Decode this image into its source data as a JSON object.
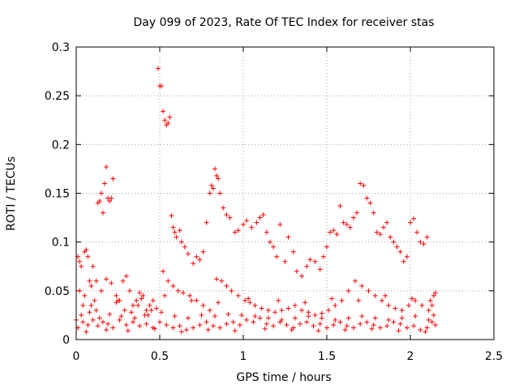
{
  "chart_data": {
    "type": "scatter",
    "title": "Day 099 of 2023, Rate Of TEC Index for receiver stas",
    "xlabel": "GPS time / hours",
    "ylabel": "ROTI / TECUs",
    "xlim": [
      0,
      2.5
    ],
    "ylim": [
      0,
      0.3
    ],
    "xticks": [
      0,
      0.5,
      1,
      1.5,
      2,
      2.5
    ],
    "xtick_labels": [
      "0",
      "0.5",
      "1",
      "1.5",
      "2",
      "2.5"
    ],
    "yticks": [
      0,
      0.05,
      0.1,
      0.15,
      0.2,
      0.25,
      0.3
    ],
    "ytick_labels": [
      "0",
      "0.05",
      "0.1",
      "0.15",
      "0.2",
      "0.25",
      "0.3"
    ],
    "grid": true,
    "marker": "+",
    "color": "#ff0000",
    "series": [
      {
        "name": "ROTI",
        "points": [
          [
            0.0,
            0.02
          ],
          [
            0.01,
            0.085
          ],
          [
            0.02,
            0.08
          ],
          [
            0.03,
            0.075
          ],
          [
            0.04,
            0.035
          ],
          [
            0.05,
            0.09
          ],
          [
            0.06,
            0.092
          ],
          [
            0.07,
            0.085
          ],
          [
            0.08,
            0.06
          ],
          [
            0.09,
            0.055
          ],
          [
            0.1,
            0.075
          ],
          [
            0.12,
            0.06
          ],
          [
            0.13,
            0.14
          ],
          [
            0.14,
            0.142
          ],
          [
            0.15,
            0.15
          ],
          [
            0.16,
            0.13
          ],
          [
            0.17,
            0.16
          ],
          [
            0.18,
            0.177
          ],
          [
            0.19,
            0.145
          ],
          [
            0.2,
            0.142
          ],
          [
            0.21,
            0.145
          ],
          [
            0.22,
            0.165
          ],
          [
            0.24,
            0.045
          ],
          [
            0.26,
            0.04
          ],
          [
            0.28,
            0.06
          ],
          [
            0.3,
            0.065
          ],
          [
            0.32,
            0.05
          ],
          [
            0.34,
            0.035
          ],
          [
            0.36,
            0.04
          ],
          [
            0.38,
            0.048
          ],
          [
            0.4,
            0.045
          ],
          [
            0.42,
            0.03
          ],
          [
            0.44,
            0.035
          ],
          [
            0.46,
            0.04
          ],
          [
            0.48,
            0.032
          ],
          [
            0.49,
            0.278
          ],
          [
            0.5,
            0.26
          ],
          [
            0.51,
            0.26
          ],
          [
            0.52,
            0.234
          ],
          [
            0.53,
            0.225
          ],
          [
            0.54,
            0.22
          ],
          [
            0.55,
            0.222
          ],
          [
            0.56,
            0.228
          ],
          [
            0.57,
            0.127
          ],
          [
            0.58,
            0.115
          ],
          [
            0.59,
            0.11
          ],
          [
            0.6,
            0.105
          ],
          [
            0.62,
            0.112
          ],
          [
            0.63,
            0.1
          ],
          [
            0.65,
            0.095
          ],
          [
            0.67,
            0.088
          ],
          [
            0.7,
            0.078
          ],
          [
            0.72,
            0.085
          ],
          [
            0.74,
            0.082
          ],
          [
            0.76,
            0.09
          ],
          [
            0.78,
            0.12
          ],
          [
            0.8,
            0.15
          ],
          [
            0.81,
            0.158
          ],
          [
            0.82,
            0.155
          ],
          [
            0.83,
            0.175
          ],
          [
            0.84,
            0.168
          ],
          [
            0.85,
            0.165
          ],
          [
            0.86,
            0.15
          ],
          [
            0.88,
            0.135
          ],
          [
            0.9,
            0.128
          ],
          [
            0.92,
            0.125
          ],
          [
            0.95,
            0.11
          ],
          [
            0.97,
            0.112
          ],
          [
            1.0,
            0.118
          ],
          [
            1.02,
            0.122
          ],
          [
            1.05,
            0.115
          ],
          [
            1.08,
            0.12
          ],
          [
            1.1,
            0.125
          ],
          [
            1.12,
            0.128
          ],
          [
            1.14,
            0.11
          ],
          [
            1.16,
            0.1
          ],
          [
            1.18,
            0.095
          ],
          [
            1.2,
            0.085
          ],
          [
            1.22,
            0.118
          ],
          [
            1.25,
            0.08
          ],
          [
            1.27,
            0.105
          ],
          [
            1.3,
            0.09
          ],
          [
            1.32,
            0.07
          ],
          [
            1.35,
            0.065
          ],
          [
            1.38,
            0.075
          ],
          [
            1.4,
            0.082
          ],
          [
            1.43,
            0.08
          ],
          [
            1.46,
            0.072
          ],
          [
            1.48,
            0.085
          ],
          [
            1.5,
            0.095
          ],
          [
            1.52,
            0.11
          ],
          [
            1.54,
            0.112
          ],
          [
            1.56,
            0.108
          ],
          [
            1.58,
            0.137
          ],
          [
            1.6,
            0.12
          ],
          [
            1.62,
            0.118
          ],
          [
            1.64,
            0.115
          ],
          [
            1.66,
            0.125
          ],
          [
            1.68,
            0.13
          ],
          [
            1.7,
            0.16
          ],
          [
            1.72,
            0.158
          ],
          [
            1.74,
            0.145
          ],
          [
            1.76,
            0.14
          ],
          [
            1.78,
            0.13
          ],
          [
            1.8,
            0.11
          ],
          [
            1.82,
            0.108
          ],
          [
            1.84,
            0.115
          ],
          [
            1.86,
            0.12
          ],
          [
            1.88,
            0.105
          ],
          [
            1.9,
            0.1
          ],
          [
            1.92,
            0.095
          ],
          [
            1.94,
            0.09
          ],
          [
            1.96,
            0.08
          ],
          [
            1.98,
            0.085
          ],
          [
            2.0,
            0.12
          ],
          [
            2.02,
            0.124
          ],
          [
            2.04,
            0.11
          ],
          [
            2.06,
            0.1
          ],
          [
            2.08,
            0.098
          ],
          [
            2.1,
            0.105
          ],
          [
            2.12,
            0.04
          ],
          [
            2.14,
            0.045
          ],
          [
            2.15,
            0.048
          ],
          [
            0.02,
            0.05
          ],
          [
            0.05,
            0.045
          ],
          [
            0.09,
            0.035
          ],
          [
            0.12,
            0.03
          ],
          [
            0.15,
            0.05
          ],
          [
            0.18,
            0.062
          ],
          [
            0.21,
            0.058
          ],
          [
            0.25,
            0.04
          ],
          [
            0.29,
            0.03
          ],
          [
            0.33,
            0.028
          ],
          [
            0.37,
            0.035
          ],
          [
            0.41,
            0.025
          ],
          [
            0.45,
            0.03
          ],
          [
            0.52,
            0.07
          ],
          [
            0.55,
            0.06
          ],
          [
            0.58,
            0.055
          ],
          [
            0.61,
            0.05
          ],
          [
            0.64,
            0.048
          ],
          [
            0.68,
            0.045
          ],
          [
            0.72,
            0.04
          ],
          [
            0.76,
            0.035
          ],
          [
            0.8,
            0.03
          ],
          [
            0.84,
            0.062
          ],
          [
            0.87,
            0.06
          ],
          [
            0.9,
            0.055
          ],
          [
            0.93,
            0.05
          ],
          [
            0.97,
            0.045
          ],
          [
            1.01,
            0.04
          ],
          [
            1.04,
            0.038
          ],
          [
            1.07,
            0.035
          ],
          [
            1.11,
            0.032
          ],
          [
            1.15,
            0.03
          ],
          [
            1.19,
            0.028
          ],
          [
            1.23,
            0.03
          ],
          [
            1.27,
            0.032
          ],
          [
            1.31,
            0.035
          ],
          [
            1.35,
            0.03
          ],
          [
            1.39,
            0.028
          ],
          [
            1.43,
            0.025
          ],
          [
            1.47,
            0.027
          ],
          [
            1.51,
            0.03
          ],
          [
            1.55,
            0.035
          ],
          [
            1.59,
            0.04
          ],
          [
            1.63,
            0.05
          ],
          [
            1.67,
            0.06
          ],
          [
            1.71,
            0.055
          ],
          [
            1.75,
            0.05
          ],
          [
            1.79,
            0.045
          ],
          [
            1.83,
            0.04
          ],
          [
            1.87,
            0.035
          ],
          [
            1.91,
            0.032
          ],
          [
            1.95,
            0.03
          ],
          [
            1.99,
            0.035
          ],
          [
            2.03,
            0.04
          ],
          [
            2.07,
            0.035
          ],
          [
            2.11,
            0.03
          ],
          [
            2.14,
            0.025
          ],
          [
            0.01,
            0.012
          ],
          [
            0.04,
            0.018
          ],
          [
            0.07,
            0.015
          ],
          [
            0.1,
            0.02
          ],
          [
            0.13,
            0.014
          ],
          [
            0.16,
            0.018
          ],
          [
            0.19,
            0.016
          ],
          [
            0.22,
            0.012
          ],
          [
            0.26,
            0.02
          ],
          [
            0.3,
            0.015
          ],
          [
            0.34,
            0.018
          ],
          [
            0.38,
            0.014
          ],
          [
            0.42,
            0.016
          ],
          [
            0.46,
            0.012
          ],
          [
            0.5,
            0.018
          ],
          [
            0.54,
            0.015
          ],
          [
            0.58,
            0.012
          ],
          [
            0.62,
            0.014
          ],
          [
            0.66,
            0.01
          ],
          [
            0.7,
            0.012
          ],
          [
            0.74,
            0.015
          ],
          [
            0.78,
            0.018
          ],
          [
            0.82,
            0.014
          ],
          [
            0.86,
            0.012
          ],
          [
            0.9,
            0.016
          ],
          [
            0.94,
            0.018
          ],
          [
            0.98,
            0.015
          ],
          [
            1.02,
            0.02
          ],
          [
            1.06,
            0.018
          ],
          [
            1.1,
            0.022
          ],
          [
            1.14,
            0.016
          ],
          [
            1.18,
            0.014
          ],
          [
            1.22,
            0.018
          ],
          [
            1.26,
            0.015
          ],
          [
            1.3,
            0.012
          ],
          [
            1.34,
            0.016
          ],
          [
            1.38,
            0.018
          ],
          [
            1.42,
            0.014
          ],
          [
            1.46,
            0.016
          ],
          [
            1.5,
            0.012
          ],
          [
            1.54,
            0.015
          ],
          [
            1.58,
            0.018
          ],
          [
            1.62,
            0.014
          ],
          [
            1.66,
            0.012
          ],
          [
            1.7,
            0.016
          ],
          [
            1.74,
            0.018
          ],
          [
            1.78,
            0.015
          ],
          [
            1.82,
            0.012
          ],
          [
            1.86,
            0.014
          ],
          [
            1.9,
            0.018
          ],
          [
            1.94,
            0.016
          ],
          [
            1.98,
            0.012
          ],
          [
            2.02,
            0.014
          ],
          [
            2.06,
            0.01
          ],
          [
            2.1,
            0.012
          ],
          [
            2.13,
            0.018
          ],
          [
            2.15,
            0.015
          ],
          [
            0.03,
            0.025
          ],
          [
            0.08,
            0.028
          ],
          [
            0.14,
            0.022
          ],
          [
            0.2,
            0.026
          ],
          [
            0.27,
            0.024
          ],
          [
            0.35,
            0.022
          ],
          [
            0.43,
            0.025
          ],
          [
            0.51,
            0.028
          ],
          [
            0.59,
            0.024
          ],
          [
            0.67,
            0.022
          ],
          [
            0.75,
            0.025
          ],
          [
            0.83,
            0.024
          ],
          [
            0.91,
            0.026
          ],
          [
            0.99,
            0.025
          ],
          [
            1.07,
            0.024
          ],
          [
            1.15,
            0.022
          ],
          [
            1.23,
            0.02
          ],
          [
            1.31,
            0.022
          ],
          [
            1.39,
            0.024
          ],
          [
            1.47,
            0.022
          ],
          [
            1.55,
            0.02
          ],
          [
            1.63,
            0.022
          ],
          [
            1.71,
            0.024
          ],
          [
            1.79,
            0.022
          ],
          [
            1.87,
            0.02
          ],
          [
            1.95,
            0.022
          ],
          [
            2.03,
            0.024
          ],
          [
            2.11,
            0.02
          ],
          [
            0.06,
            0.008
          ],
          [
            0.18,
            0.01
          ],
          [
            0.31,
            0.009
          ],
          [
            0.47,
            0.011
          ],
          [
            0.63,
            0.008
          ],
          [
            0.79,
            0.01
          ],
          [
            0.95,
            0.009
          ],
          [
            1.13,
            0.011
          ],
          [
            1.29,
            0.01
          ],
          [
            1.45,
            0.009
          ],
          [
            1.61,
            0.01
          ],
          [
            1.77,
            0.011
          ],
          [
            1.93,
            0.009
          ],
          [
            2.09,
            0.008
          ],
          [
            0.11,
            0.04
          ],
          [
            0.24,
            0.038
          ],
          [
            0.39,
            0.042
          ],
          [
            0.53,
            0.045
          ],
          [
            0.69,
            0.04
          ],
          [
            0.85,
            0.038
          ],
          [
            1.03,
            0.042
          ],
          [
            1.21,
            0.04
          ],
          [
            1.37,
            0.038
          ],
          [
            1.53,
            0.042
          ],
          [
            1.69,
            0.04
          ],
          [
            1.85,
            0.045
          ],
          [
            2.01,
            0.042
          ],
          [
            2.13,
            0.035
          ]
        ]
      }
    ]
  }
}
